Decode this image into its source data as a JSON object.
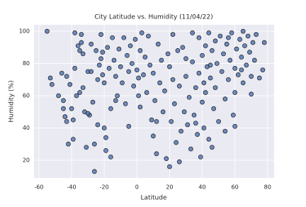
{
  "chart_data": {
    "type": "scatter",
    "title": "City Latitude vs. Humidity (11/04/22)",
    "x_label": "Latitude",
    "y_label": "Humidity (%)",
    "x": [
      -55,
      -53,
      -52,
      -46,
      -45,
      -45,
      -44,
      -43,
      -42,
      -43,
      -41,
      -40,
      -39,
      -38,
      -38,
      -37,
      -36,
      -35,
      -35,
      -34,
      -34,
      -33,
      -33,
      -32,
      -31,
      -30,
      -29,
      -28,
      -28,
      -27,
      -26,
      -26,
      -25,
      -24,
      -24,
      -23,
      -22,
      -22,
      -21,
      -21,
      -20,
      -20,
      -19,
      -19,
      -18,
      -17,
      -16,
      -16,
      -15,
      -14,
      -13,
      -12,
      -11,
      -10,
      -9,
      -8,
      -7,
      -6,
      -5,
      -5,
      -4,
      -3,
      -2,
      -1,
      0,
      1,
      2,
      2,
      3,
      4,
      5,
      6,
      7,
      8,
      9,
      10,
      10,
      11,
      12,
      13,
      14,
      15,
      16,
      17,
      18,
      19,
      20,
      20,
      21,
      22,
      23,
      24,
      25,
      26,
      26,
      27,
      28,
      29,
      30,
      31,
      32,
      33,
      34,
      35,
      36,
      37,
      38,
      38,
      39,
      40,
      40,
      41,
      41,
      42,
      42,
      43,
      44,
      44,
      45,
      46,
      47,
      48,
      48,
      49,
      50,
      51,
      52,
      53,
      54,
      55,
      56,
      57,
      58,
      59,
      60,
      60,
      61,
      62,
      63,
      64,
      65,
      65,
      66,
      67,
      68,
      69,
      70,
      70,
      71,
      72,
      73,
      75,
      77,
      78,
      -48,
      -39,
      -13,
      -30,
      1,
      12,
      36,
      46,
      54,
      22,
      30,
      60,
      34,
      56,
      45,
      64
    ],
    "values": [
      100,
      71,
      67,
      74,
      57,
      52,
      47,
      44,
      30,
      72,
      67,
      52,
      45,
      99,
      77,
      60,
      91,
      88,
      62,
      98,
      93,
      86,
      65,
      50,
      28,
      75,
      48,
      92,
      75,
      56,
      30,
      13,
      88,
      70,
      42,
      79,
      98,
      83,
      87,
      73,
      68,
      40,
      34,
      26,
      90,
      77,
      52,
      22,
      96,
      82,
      72,
      60,
      89,
      78,
      68,
      96,
      55,
      85,
      75,
      41,
      91,
      80,
      66,
      95,
      76,
      71,
      88,
      53,
      99,
      73,
      84,
      62,
      97,
      79,
      45,
      74,
      35,
      57,
      24,
      92,
      68,
      82,
      50,
      63,
      21,
      86,
      16,
      78,
      44,
      70,
      55,
      31,
      88,
      19,
      66,
      38,
      90,
      50,
      72,
      42,
      59,
      27,
      81,
      48,
      65,
      36,
      96,
      74,
      22,
      85,
      56,
      68,
      40,
      91,
      62,
      78,
      33,
      99,
      71,
      88,
      52,
      94,
      65,
      80,
      44,
      97,
      75,
      86,
      58,
      92,
      70,
      82,
      99,
      48,
      77,
      41,
      89,
      73,
      95,
      84,
      100,
      68,
      91,
      79,
      97,
      87,
      72,
      61,
      93,
      82,
      98,
      71,
      76,
      93,
      60,
      33,
      57,
      49,
      60,
      44,
      43,
      28,
      38,
      98,
      83,
      62,
      99,
      96,
      79,
      76
    ],
    "color": "#4c72b0",
    "xlim": [
      -63,
      84
    ],
    "ylim": [
      9,
      104
    ],
    "xticks": [
      -60,
      -40,
      -20,
      0,
      20,
      40,
      60,
      80
    ],
    "yticks": [
      20,
      40,
      60,
      80,
      100
    ],
    "grid": true
  }
}
